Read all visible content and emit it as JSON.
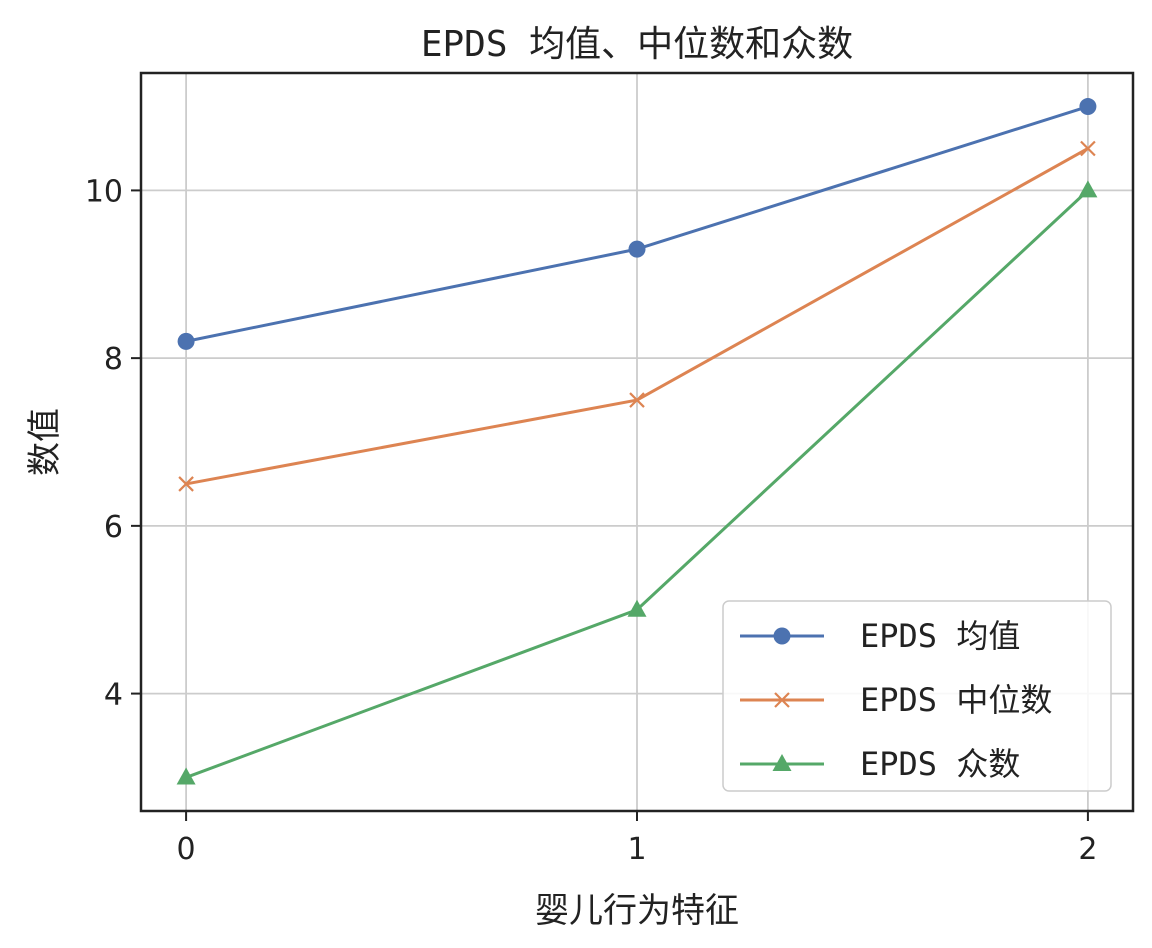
{
  "chart_data": {
    "type": "line",
    "title": "EPDS 均值、中位数和众数",
    "xlabel": "婴儿行为特征",
    "ylabel": "数值",
    "x": [
      0,
      1,
      2
    ],
    "xticks": [
      "0",
      "1",
      "2"
    ],
    "yticks": [
      "4",
      "6",
      "8",
      "10"
    ],
    "xlim": [
      -0.1,
      2.1
    ],
    "ylim": [
      2.6,
      11.4
    ],
    "grid": true,
    "legend_position": "lower right",
    "series": [
      {
        "name": "EPDS 均值",
        "values": [
          8.2,
          9.3,
          11.0
        ],
        "color": "#4c72b0",
        "marker": "circle"
      },
      {
        "name": "EPDS 中位数",
        "values": [
          6.5,
          7.5,
          10.5
        ],
        "color": "#dd8452",
        "marker": "x"
      },
      {
        "name": "EPDS 众数",
        "values": [
          3.0,
          5.0,
          10.0
        ],
        "color": "#55a868",
        "marker": "triangle"
      }
    ]
  }
}
